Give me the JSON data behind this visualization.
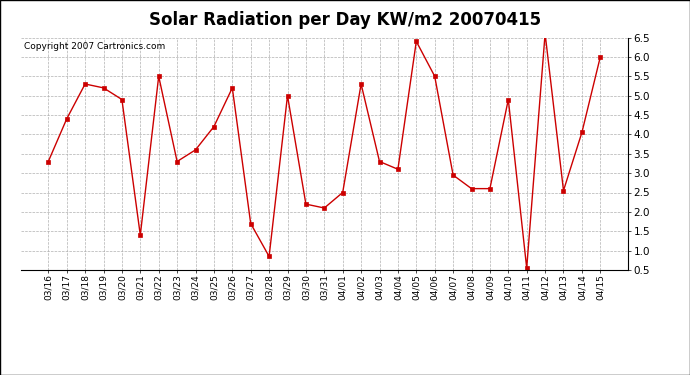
{
  "title": "Solar Radiation per Day KW/m2 20070415",
  "copyright_text": "Copyright 2007 Cartronics.com",
  "dates": [
    "03/16",
    "03/17",
    "03/18",
    "03/19",
    "03/20",
    "03/21",
    "03/22",
    "03/23",
    "03/24",
    "03/25",
    "03/26",
    "03/27",
    "03/28",
    "03/29",
    "03/30",
    "03/31",
    "04/01",
    "04/02",
    "04/03",
    "04/04",
    "04/05",
    "04/06",
    "04/07",
    "04/08",
    "04/09",
    "04/10",
    "04/11",
    "04/12",
    "04/13",
    "04/14",
    "04/15"
  ],
  "values": [
    3.3,
    4.4,
    5.3,
    5.2,
    4.9,
    1.4,
    5.5,
    3.3,
    3.6,
    4.2,
    5.2,
    1.7,
    0.85,
    5.0,
    2.2,
    2.1,
    2.5,
    5.3,
    3.3,
    3.1,
    6.4,
    5.5,
    2.95,
    2.6,
    2.6,
    4.9,
    0.55,
    6.6,
    2.55,
    4.05,
    6.0
  ],
  "line_color": "#cc0000",
  "marker": "s",
  "marker_size": 2.5,
  "bg_color": "#ffffff",
  "grid_color": "#b0b0b0",
  "ylim_min": 0.5,
  "ylim_max": 6.5,
  "yticks": [
    0.5,
    1.0,
    1.5,
    2.0,
    2.5,
    3.0,
    3.5,
    4.0,
    4.5,
    5.0,
    5.5,
    6.0,
    6.5
  ],
  "title_fontsize": 12,
  "copyright_fontsize": 6.5,
  "tick_fontsize": 6.5,
  "ytick_fontsize": 7.5
}
